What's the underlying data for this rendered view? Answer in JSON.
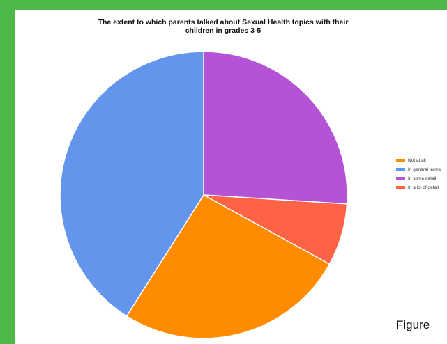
{
  "chart_data": {
    "type": "pie",
    "title": "The extent to which parents talked about Sexual Health topics with their children in grades 3-5",
    "title_lines": [
      "The extent to which parents talked about Sexual Health topics with their",
      "children in grades 3-5"
    ],
    "slices": [
      {
        "label": "Not at all",
        "value": 26,
        "color": "#ff8c00"
      },
      {
        "label": "In general terms",
        "value": 41,
        "color": "#6495ed"
      },
      {
        "label": "In some detail",
        "value": 26,
        "color": "#b553d6"
      },
      {
        "label": "In a lot of detail",
        "value": 7,
        "color": "#ff6346"
      }
    ],
    "legend_position": "right"
  },
  "caption": "Figure"
}
